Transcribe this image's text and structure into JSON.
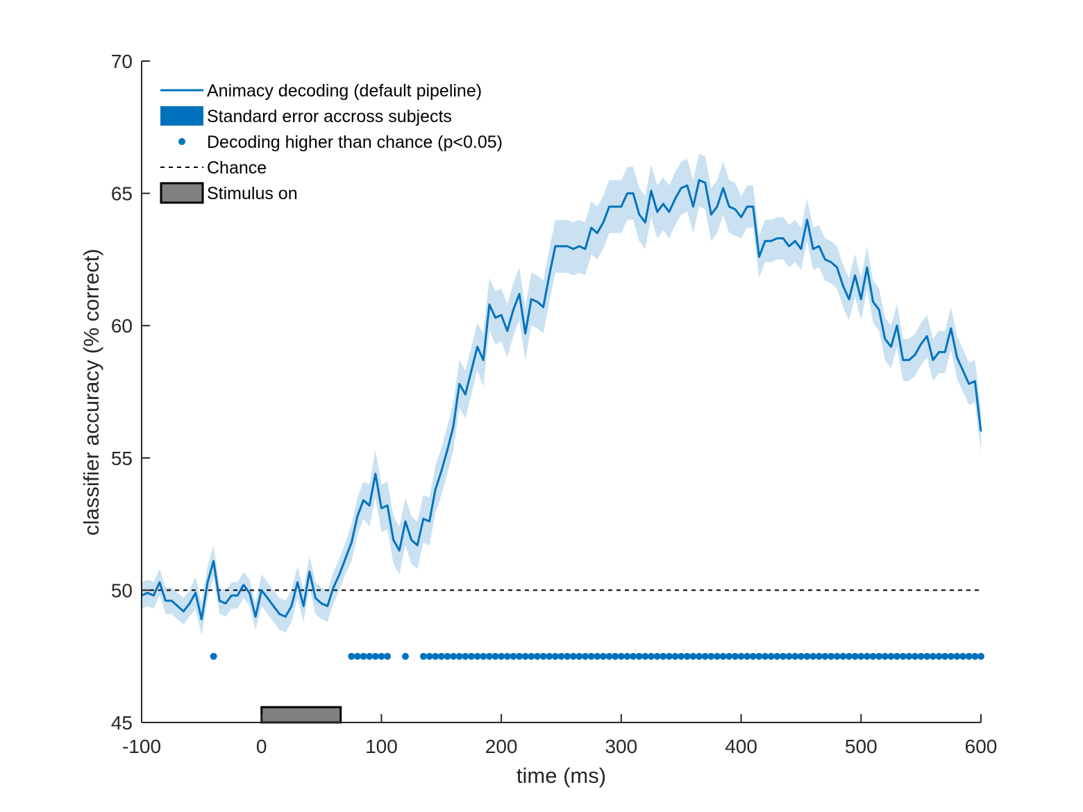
{
  "chart_data": {
    "type": "line",
    "xlabel": "time (ms)",
    "ylabel": "classifier accuracy (% correct)",
    "xlim": [
      -100,
      600
    ],
    "ylim": [
      45,
      70
    ],
    "xticks": [
      -100,
      0,
      100,
      200,
      300,
      400,
      500,
      600
    ],
    "yticks": [
      45,
      50,
      55,
      60,
      65,
      70
    ],
    "xtick_labels": [
      "-100",
      "0",
      "100",
      "200",
      "300",
      "400",
      "500",
      "600"
    ],
    "ytick_labels": [
      "45",
      "50",
      "55",
      "60",
      "65",
      "70"
    ],
    "grid": false,
    "legend_position": "top-left",
    "colors": {
      "main": "#0072BD",
      "band": "#C9E1F1",
      "chance": "#000000",
      "stimulus_fill": "#808080",
      "axis": "#262626"
    },
    "legend": [
      {
        "label": "Animacy decoding (default pipeline)",
        "symbol": "line"
      },
      {
        "label": "Standard error accross subjects",
        "symbol": "patch"
      },
      {
        "label": "Decoding higher than chance (p<0.05)",
        "symbol": "dot"
      },
      {
        "label": "Chance",
        "symbol": "dashed"
      },
      {
        "label": "Stimulus on",
        "symbol": "stimulus"
      }
    ],
    "series": [
      {
        "name": "Animacy decoding (default pipeline)",
        "x": [
          -100,
          -95,
          -90,
          -85,
          -80,
          -75,
          -70,
          -65,
          -60,
          -55,
          -50,
          -45,
          -40,
          -35,
          -30,
          -25,
          -20,
          -15,
          -10,
          -5,
          0,
          5,
          10,
          15,
          20,
          25,
          30,
          35,
          40,
          45,
          50,
          55,
          60,
          65,
          70,
          75,
          80,
          85,
          90,
          95,
          100,
          105,
          110,
          115,
          120,
          125,
          130,
          135,
          140,
          145,
          150,
          155,
          160,
          165,
          170,
          175,
          180,
          185,
          190,
          195,
          200,
          205,
          210,
          215,
          220,
          225,
          230,
          235,
          240,
          245,
          250,
          255,
          260,
          265,
          270,
          275,
          280,
          285,
          290,
          295,
          300,
          305,
          310,
          315,
          320,
          325,
          330,
          335,
          340,
          345,
          350,
          355,
          360,
          365,
          370,
          375,
          380,
          385,
          390,
          395,
          400,
          405,
          410,
          415,
          420,
          425,
          430,
          435,
          440,
          445,
          450,
          455,
          460,
          465,
          470,
          475,
          480,
          485,
          490,
          495,
          500,
          505,
          510,
          515,
          520,
          525,
          530,
          535,
          540,
          545,
          550,
          555,
          560,
          565,
          570,
          575,
          580,
          585,
          590,
          595,
          600
        ],
        "y": [
          49.8,
          49.9,
          49.8,
          50.3,
          49.6,
          49.6,
          49.4,
          49.2,
          49.5,
          49.9,
          48.9,
          50.3,
          51.1,
          49.6,
          49.5,
          49.8,
          49.8,
          50.2,
          49.9,
          49.0,
          50.0,
          49.7,
          49.4,
          49.1,
          49.0,
          49.4,
          50.3,
          49.4,
          50.7,
          49.7,
          49.5,
          49.4,
          50.1,
          50.6,
          51.2,
          51.8,
          52.8,
          53.4,
          53.2,
          54.4,
          53.1,
          53.2,
          51.9,
          51.5,
          52.6,
          51.9,
          51.7,
          52.7,
          52.6,
          53.8,
          54.5,
          55.3,
          56.2,
          57.8,
          57.4,
          58.3,
          59.2,
          58.7,
          60.8,
          60.3,
          60.4,
          59.8,
          60.6,
          61.2,
          59.7,
          61.0,
          60.9,
          60.7,
          61.9,
          63.0,
          63.0,
          63.0,
          62.9,
          63.0,
          62.9,
          63.7,
          63.5,
          63.9,
          64.5,
          64.5,
          64.5,
          65.0,
          65.0,
          64.2,
          63.9,
          65.1,
          64.3,
          64.6,
          64.3,
          64.8,
          65.2,
          65.3,
          64.5,
          65.5,
          65.4,
          64.2,
          64.5,
          65.2,
          64.5,
          64.4,
          64.1,
          64.5,
          64.5,
          62.6,
          63.2,
          63.2,
          63.3,
          63.3,
          63.0,
          63.2,
          62.9,
          64.0,
          62.9,
          63.0,
          62.5,
          62.4,
          62.2,
          61.5,
          61.0,
          61.9,
          61.0,
          62.2,
          60.9,
          60.6,
          59.5,
          59.2,
          60.0,
          58.7,
          58.7,
          58.9,
          59.3,
          59.6,
          58.7,
          59.0,
          59.0,
          59.9,
          58.8,
          58.3,
          57.8,
          57.9,
          56.0
        ],
        "err": [
          0.5,
          0.5,
          0.5,
          0.5,
          0.5,
          0.5,
          0.5,
          0.5,
          0.5,
          0.6,
          0.6,
          0.6,
          0.6,
          0.5,
          0.5,
          0.5,
          0.5,
          0.5,
          0.5,
          0.5,
          0.6,
          0.6,
          0.6,
          0.6,
          0.6,
          0.6,
          0.6,
          0.6,
          0.6,
          0.6,
          0.6,
          0.6,
          0.6,
          0.6,
          0.6,
          0.7,
          0.7,
          0.7,
          0.8,
          0.9,
          0.9,
          0.9,
          0.9,
          0.9,
          0.9,
          0.9,
          0.9,
          0.9,
          0.9,
          0.9,
          0.9,
          0.9,
          0.9,
          0.9,
          0.9,
          0.9,
          0.9,
          1.0,
          1.0,
          1.0,
          1.0,
          1.0,
          1.0,
          1.0,
          1.0,
          1.0,
          1.0,
          1.0,
          1.0,
          1.0,
          1.0,
          1.0,
          1.0,
          1.0,
          1.0,
          1.0,
          1.0,
          1.0,
          1.0,
          1.0,
          1.0,
          1.0,
          1.0,
          1.0,
          1.0,
          1.0,
          1.0,
          1.0,
          1.0,
          1.0,
          1.0,
          1.0,
          1.0,
          1.0,
          1.0,
          1.0,
          1.0,
          1.0,
          1.0,
          1.0,
          0.8,
          0.8,
          0.8,
          0.8,
          0.8,
          0.8,
          0.8,
          0.8,
          0.8,
          0.8,
          0.8,
          0.8,
          0.8,
          0.8,
          0.8,
          0.8,
          0.8,
          0.8,
          0.8,
          0.8,
          0.8,
          0.8,
          0.8,
          0.8,
          0.8,
          0.8,
          0.8,
          0.8,
          0.8,
          0.8,
          0.8,
          0.8,
          0.8,
          0.8,
          0.8,
          0.8,
          0.8,
          0.8,
          0.8,
          0.8,
          0.8
        ]
      },
      {
        "name": "Decoding higher than chance (p<0.05)",
        "y": 47.5,
        "x": [
          -40,
          75,
          80,
          85,
          90,
          95,
          100,
          105,
          120,
          135,
          140,
          145,
          150,
          155,
          160,
          165,
          170,
          175,
          180,
          185,
          190,
          195,
          200,
          205,
          210,
          215,
          220,
          225,
          230,
          235,
          240,
          245,
          250,
          255,
          260,
          265,
          270,
          275,
          280,
          285,
          290,
          295,
          300,
          305,
          310,
          315,
          320,
          325,
          330,
          335,
          340,
          345,
          350,
          355,
          360,
          365,
          370,
          375,
          380,
          385,
          390,
          395,
          400,
          405,
          410,
          415,
          420,
          425,
          430,
          435,
          440,
          445,
          450,
          455,
          460,
          465,
          470,
          475,
          480,
          485,
          490,
          495,
          500,
          505,
          510,
          515,
          520,
          525,
          530,
          535,
          540,
          545,
          550,
          555,
          560,
          565,
          570,
          575,
          580,
          585,
          590,
          595,
          600
        ]
      },
      {
        "name": "Chance",
        "y": 50
      },
      {
        "name": "Stimulus on",
        "x_start": 0,
        "x_end": 66,
        "y_bottom": 45,
        "y_top": 45.5
      }
    ]
  }
}
